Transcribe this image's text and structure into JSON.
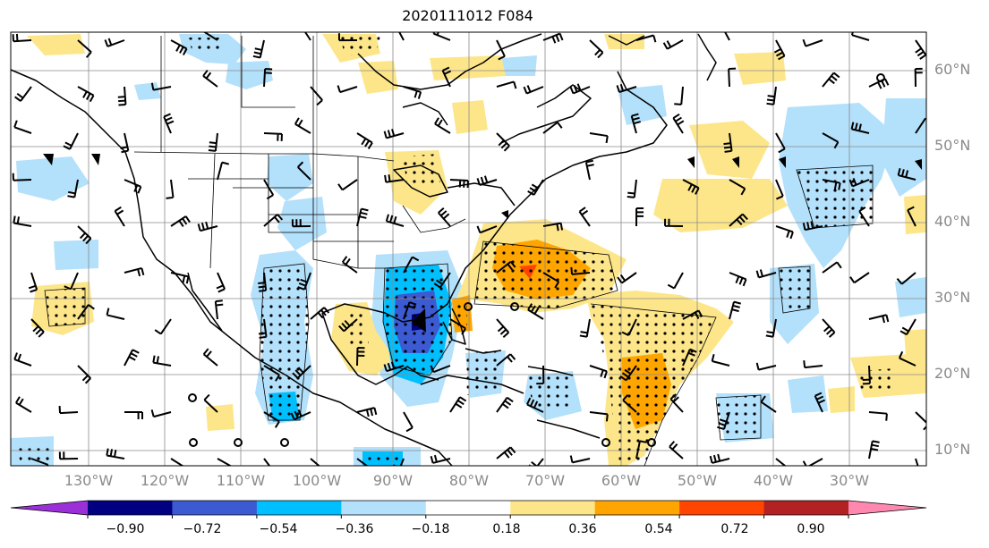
{
  "title": "2020111012 F084",
  "lat_labels": [
    "60°N",
    "50°N",
    "40°N",
    "30°N",
    "20°N",
    "10°N"
  ],
  "lon_labels": [
    "130°W",
    "120°W",
    "110°W",
    "100°W",
    "90°W",
    "80°W",
    "70°W",
    "60°W",
    "50°W",
    "40°W",
    "30°W"
  ],
  "colorbar": {
    "ticks": [
      "−0.90",
      "−0.72",
      "−0.54",
      "−0.36",
      "−0.18",
      "0.18",
      "0.36",
      "0.54",
      "0.72",
      "0.90"
    ],
    "colors": [
      "#9b30d9",
      "#000080",
      "#3c5ad2",
      "#00bfff",
      "#b3e0fa",
      "#ffffff",
      "#fde68a",
      "#ffa500",
      "#ff4500",
      "#b22222",
      "#ff88b0"
    ]
  },
  "field_colors": {
    "light_blue": "#b3e0fa",
    "blue": "#00bfff",
    "mid_blue": "#3c5ad2",
    "yellow": "#fde68a",
    "orange": "#ffa500",
    "red": "#ff4500"
  },
  "icons": {
    "coastline": "coastline-icon",
    "wind_barb": "wind-barb-icon",
    "stipple": "stipple-icon"
  }
}
